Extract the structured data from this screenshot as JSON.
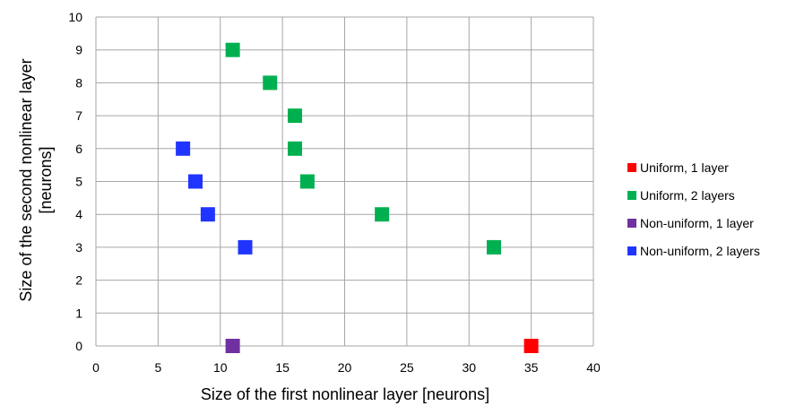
{
  "chart_data": {
    "type": "scatter",
    "title": "",
    "xlabel": "Size of the first nonlinear layer [neurons]",
    "ylabel_lines": [
      "Size of the second nonlinear layer",
      "[neurons]"
    ],
    "xlim": [
      0,
      40
    ],
    "ylim": [
      0,
      10
    ],
    "x_ticks": [
      0,
      5,
      10,
      15,
      20,
      25,
      30,
      35,
      40
    ],
    "y_ticks": [
      0,
      1,
      2,
      3,
      4,
      5,
      6,
      7,
      8,
      9,
      10
    ],
    "grid": true,
    "legend_position": "right",
    "series": [
      {
        "name": "Uniform, 1 layer",
        "color": "#ff0000",
        "marker": "square",
        "points": [
          [
            35,
            0
          ]
        ]
      },
      {
        "name": "Uniform, 2 layers",
        "color": "#00b050",
        "marker": "square",
        "points": [
          [
            11,
            9
          ],
          [
            14,
            8
          ],
          [
            16,
            7
          ],
          [
            16,
            6
          ],
          [
            17,
            5
          ],
          [
            23,
            4
          ],
          [
            32,
            3
          ]
        ]
      },
      {
        "name": "Non-uniform, 1 layer",
        "color": "#7030a0",
        "marker": "square",
        "points": [
          [
            11,
            0
          ]
        ]
      },
      {
        "name": "Non-uniform, 2 layers",
        "color": "#1f35ff",
        "marker": "square",
        "points": [
          [
            7,
            6
          ],
          [
            8,
            5
          ],
          [
            9,
            4
          ],
          [
            12,
            3
          ]
        ]
      }
    ]
  }
}
